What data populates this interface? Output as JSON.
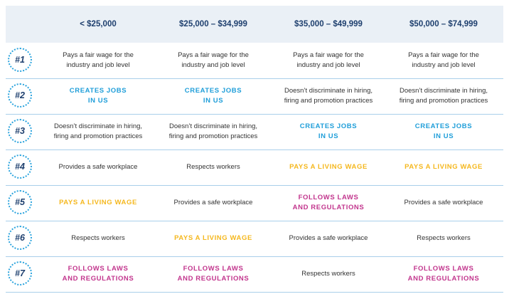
{
  "columns": [
    "< $25,000",
    "$25,000 – $34,999",
    "$35,000 – $49,999",
    "$50,000 – $74,999"
  ],
  "colors": {
    "blue": "#1f9ed9",
    "yellow": "#f5b81f",
    "magenta": "#c2358d",
    "navy": "#1e3f6e"
  },
  "rows": [
    {
      "rank": "#1",
      "cells": [
        {
          "text": "Pays a fair wage for the\nindustry and job level",
          "style": "plain"
        },
        {
          "text": "Pays a fair wage for the\nindustry and job level",
          "style": "plain"
        },
        {
          "text": "Pays a fair wage for the\nindustry and job level",
          "style": "plain"
        },
        {
          "text": "Pays a fair wage for the\nindustry and job level",
          "style": "plain"
        }
      ]
    },
    {
      "rank": "#2",
      "cells": [
        {
          "text": "CREATES JOBS\nIN US",
          "style": "blue"
        },
        {
          "text": "CREATES JOBS\nIN US",
          "style": "blue"
        },
        {
          "text": "Doesn’t discriminate in hiring,\nfiring and promotion practices",
          "style": "plain"
        },
        {
          "text": "Doesn’t discriminate in hiring,\nfiring and promotion practices",
          "style": "plain"
        }
      ]
    },
    {
      "rank": "#3",
      "cells": [
        {
          "text": "Doesn’t discriminate in hiring,\nfiring and promotion practices",
          "style": "plain"
        },
        {
          "text": "Doesn’t discriminate in hiring,\nfiring and promotion practices",
          "style": "plain"
        },
        {
          "text": "CREATES JOBS\nIN US",
          "style": "blue"
        },
        {
          "text": "CREATES JOBS\nIN US",
          "style": "blue"
        }
      ]
    },
    {
      "rank": "#4",
      "cells": [
        {
          "text": "Provides a safe workplace",
          "style": "plain"
        },
        {
          "text": "Respects workers",
          "style": "plain"
        },
        {
          "text": "PAYS A LIVING WAGE",
          "style": "yellow"
        },
        {
          "text": "PAYS A LIVING WAGE",
          "style": "yellow"
        }
      ]
    },
    {
      "rank": "#5",
      "cells": [
        {
          "text": "PAYS A LIVING WAGE",
          "style": "yellow"
        },
        {
          "text": "Provides a safe workplace",
          "style": "plain"
        },
        {
          "text": "FOLLOWS LAWS\nAND REGULATIONS",
          "style": "magenta"
        },
        {
          "text": "Provides a safe workplace",
          "style": "plain"
        }
      ]
    },
    {
      "rank": "#6",
      "cells": [
        {
          "text": "Respects workers",
          "style": "plain"
        },
        {
          "text": "PAYS A LIVING WAGE",
          "style": "yellow"
        },
        {
          "text": "Provides a safe workplace",
          "style": "plain"
        },
        {
          "text": "Respects workers",
          "style": "plain"
        }
      ]
    },
    {
      "rank": "#7",
      "cells": [
        {
          "text": "FOLLOWS LAWS\nAND REGULATIONS",
          "style": "magenta"
        },
        {
          "text": "FOLLOWS LAWS\nAND REGULATIONS",
          "style": "magenta"
        },
        {
          "text": "Respects workers",
          "style": "plain"
        },
        {
          "text": "FOLLOWS LAWS\nAND REGULATIONS",
          "style": "magenta"
        }
      ]
    }
  ]
}
